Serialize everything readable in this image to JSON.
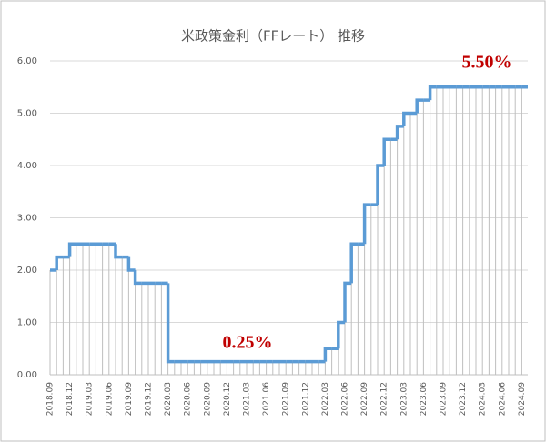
{
  "chart_data": {
    "type": "step-line",
    "title": "米政策金利（FFレート） 推移",
    "categories": [
      "2018.09",
      null,
      null,
      "2018.12",
      null,
      null,
      "2019.03",
      null,
      null,
      "2019.06",
      null,
      null,
      "2019.09",
      null,
      null,
      "2019.12",
      null,
      null,
      "2020.03",
      null,
      null,
      "2020.06",
      null,
      null,
      "2020.09",
      null,
      null,
      "2020.12",
      null,
      null,
      "2021.03",
      null,
      null,
      "2021.06",
      null,
      null,
      "2021.09",
      null,
      null,
      "2021.12",
      null,
      null,
      "2022.03",
      null,
      null,
      "2022.06",
      null,
      null,
      "2022.09",
      null,
      null,
      "2022.12",
      null,
      null,
      "2023.03",
      null,
      null,
      "2023.06",
      null,
      null,
      "2023.09",
      null,
      null,
      "2023.12",
      null,
      null,
      "2024.03",
      null,
      null,
      "2024.06",
      null,
      null,
      "2024.09"
    ],
    "values": [
      2.0,
      2.25,
      2.25,
      2.5,
      2.5,
      2.5,
      2.5,
      2.5,
      2.5,
      2.5,
      2.25,
      2.25,
      2.0,
      1.75,
      1.75,
      1.75,
      1.75,
      1.75,
      0.25,
      0.25,
      0.25,
      0.25,
      0.25,
      0.25,
      0.25,
      0.25,
      0.25,
      0.25,
      0.25,
      0.25,
      0.25,
      0.25,
      0.25,
      0.25,
      0.25,
      0.25,
      0.25,
      0.25,
      0.25,
      0.25,
      0.25,
      0.25,
      0.5,
      0.5,
      1.0,
      1.75,
      2.5,
      2.5,
      3.25,
      3.25,
      4.0,
      4.5,
      4.5,
      4.75,
      5.0,
      5.0,
      5.25,
      5.25,
      5.5,
      5.5,
      5.5,
      5.5,
      5.5,
      5.5,
      5.5,
      5.5,
      5.5,
      5.5,
      5.5,
      5.5,
      5.5,
      5.5,
      5.5
    ],
    "color": "#5b9bd5",
    "ylim": [
      0,
      6
    ],
    "yticks": [
      {
        "value": 0,
        "label": "0.00"
      },
      {
        "value": 1,
        "label": "1.00"
      },
      {
        "value": 2,
        "label": "2.00"
      },
      {
        "value": 3,
        "label": "3.00"
      },
      {
        "value": 4,
        "label": "4.00"
      },
      {
        "value": 5,
        "label": "5.00"
      },
      {
        "value": 6,
        "label": "6.00"
      }
    ],
    "grid": true,
    "annotations": [
      {
        "text": "5.50%",
        "color": "#c00000"
      },
      {
        "text": "0.25%",
        "color": "#c00000"
      }
    ]
  }
}
